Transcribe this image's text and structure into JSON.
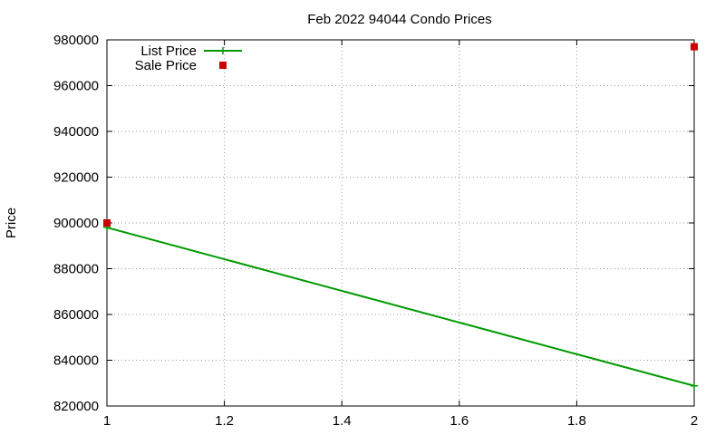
{
  "chart_data": {
    "type": "line",
    "title": "Feb 2022 94044 Condo Prices",
    "xlabel": "",
    "ylabel": "Price",
    "xlim": [
      1,
      2
    ],
    "ylim": [
      820000,
      980000
    ],
    "x_ticks": [
      "1",
      "1.2",
      "1.4",
      "1.6",
      "1.8",
      "2"
    ],
    "y_ticks": [
      "820000",
      "840000",
      "860000",
      "880000",
      "900000",
      "920000",
      "940000",
      "960000",
      "980000"
    ],
    "grid": true,
    "legend_position": "top-left",
    "series": [
      {
        "name": "List Price",
        "kind": "line",
        "color": "#009900",
        "x": [
          1,
          2
        ],
        "y": [
          898000,
          828800
        ]
      },
      {
        "name": "Sale Price",
        "kind": "points",
        "color": "#cc0000",
        "x": [
          1,
          2
        ],
        "y": [
          900000,
          977000
        ]
      }
    ]
  }
}
